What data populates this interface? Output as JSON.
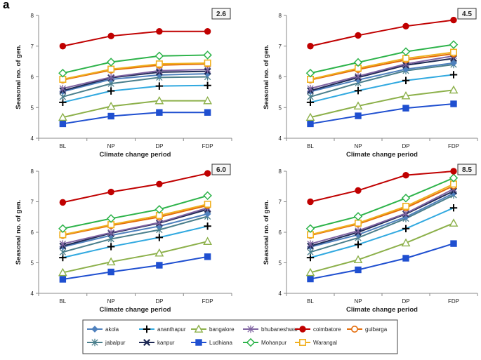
{
  "panel_label": "a",
  "colors": {
    "akola": "#4f81bd",
    "ananthapur": "#000000",
    "bangalore": "#8cb04a",
    "bhubaneshwar": "#8064a2",
    "coimbatore": "#c00000",
    "gulbarga": "#e46c0a",
    "jabalpur": "#4a7f8c",
    "kanpur": "#1f2a55",
    "Ludhiana": "#1f4fd0",
    "Mohanpur": "#2db34a",
    "Warangal": "#f0b020",
    "ananthapur_light": "#31a9e0"
  },
  "legend": {
    "entries": [
      "akola",
      "ananthapur",
      "bangalore",
      "bhubaneshwar",
      "coimbatore",
      "gulbarga",
      "jabalpur",
      "kanpur",
      "Ludhiana",
      "Mohanpur",
      "Warangal"
    ]
  },
  "chart_data": [
    {
      "type": "line",
      "scenario": "2.6",
      "categories": [
        "BL",
        "NP",
        "DP",
        "FDP"
      ],
      "xlabel": "Climate change period",
      "ylabel": "Seasonal no. of gen.",
      "ylim": [
        4,
        8
      ],
      "yticks": [
        4,
        5,
        6,
        7,
        8
      ],
      "series": [
        {
          "name": "coimbatore",
          "values": [
            7.0,
            7.33,
            7.48,
            7.48
          ]
        },
        {
          "name": "Mohanpur",
          "values": [
            6.12,
            6.48,
            6.68,
            6.71
          ]
        },
        {
          "name": "Warangal",
          "values": [
            5.92,
            6.25,
            6.42,
            6.45
          ]
        },
        {
          "name": "gulbarga",
          "values": [
            5.9,
            6.22,
            6.38,
            6.42
          ]
        },
        {
          "name": "bhubaneshwar",
          "values": [
            5.62,
            5.99,
            6.2,
            6.24
          ]
        },
        {
          "name": "kanpur",
          "values": [
            5.55,
            5.97,
            6.15,
            6.18
          ]
        },
        {
          "name": "akola",
          "values": [
            5.52,
            5.92,
            6.06,
            6.1
          ]
        },
        {
          "name": "jabalpur",
          "values": [
            5.35,
            5.78,
            5.98,
            6.0
          ]
        },
        {
          "name": "ananthapur",
          "values": [
            5.17,
            5.54,
            5.7,
            5.72
          ]
        },
        {
          "name": "bangalore",
          "values": [
            4.68,
            5.04,
            5.22,
            5.22
          ]
        },
        {
          "name": "Ludhiana",
          "values": [
            4.47,
            4.72,
            4.84,
            4.84
          ]
        }
      ]
    },
    {
      "type": "line",
      "scenario": "4.5",
      "categories": [
        "BL",
        "NP",
        "DP",
        "FDP"
      ],
      "xlabel": "Climate change period",
      "ylabel": "Seasonal no. of gen.",
      "ylim": [
        4,
        8
      ],
      "yticks": [
        4,
        5,
        6,
        7,
        8
      ],
      "series": [
        {
          "name": "coimbatore",
          "values": [
            7.0,
            7.35,
            7.65,
            7.85
          ]
        },
        {
          "name": "Mohanpur",
          "values": [
            6.12,
            6.47,
            6.82,
            7.05
          ]
        },
        {
          "name": "Warangal",
          "values": [
            5.92,
            6.28,
            6.6,
            6.8
          ]
        },
        {
          "name": "gulbarga",
          "values": [
            5.9,
            6.24,
            6.55,
            6.75
          ]
        },
        {
          "name": "bhubaneshwar",
          "values": [
            5.62,
            6.02,
            6.42,
            6.68
          ]
        },
        {
          "name": "kanpur",
          "values": [
            5.55,
            5.98,
            6.38,
            6.6
          ]
        },
        {
          "name": "akola",
          "values": [
            5.52,
            5.9,
            6.25,
            6.45
          ]
        },
        {
          "name": "jabalpur",
          "values": [
            5.35,
            5.8,
            6.2,
            6.4
          ]
        },
        {
          "name": "ananthapur",
          "values": [
            5.17,
            5.55,
            5.88,
            6.07
          ]
        },
        {
          "name": "bangalore",
          "values": [
            4.68,
            5.05,
            5.38,
            5.57
          ]
        },
        {
          "name": "Ludhiana",
          "values": [
            4.47,
            4.73,
            4.98,
            5.12
          ]
        }
      ]
    },
    {
      "type": "line",
      "scenario": "6.0",
      "categories": [
        "BL",
        "NP",
        "DP",
        "FDP"
      ],
      "xlabel": "Climate change period",
      "ylabel": "Seasonal no. of gen.",
      "ylim": [
        4,
        8
      ],
      "yticks": [
        4,
        5,
        6,
        7,
        8
      ],
      "series": [
        {
          "name": "coimbatore",
          "values": [
            6.98,
            7.32,
            7.58,
            7.93
          ]
        },
        {
          "name": "Mohanpur",
          "values": [
            6.12,
            6.45,
            6.75,
            7.2
          ]
        },
        {
          "name": "Warangal",
          "values": [
            5.92,
            6.25,
            6.55,
            6.92
          ]
        },
        {
          "name": "gulbarga",
          "values": [
            5.9,
            6.22,
            6.5,
            6.88
          ]
        },
        {
          "name": "bhubaneshwar",
          "values": [
            5.62,
            5.99,
            6.32,
            6.8
          ]
        },
        {
          "name": "kanpur",
          "values": [
            5.55,
            5.97,
            6.3,
            6.75
          ]
        },
        {
          "name": "akola",
          "values": [
            5.52,
            5.9,
            6.2,
            6.6
          ]
        },
        {
          "name": "jabalpur",
          "values": [
            5.35,
            5.78,
            6.08,
            6.52
          ]
        },
        {
          "name": "ananthapur",
          "values": [
            5.17,
            5.53,
            5.83,
            6.2
          ]
        },
        {
          "name": "bangalore",
          "values": [
            4.68,
            5.03,
            5.32,
            5.7
          ]
        },
        {
          "name": "Ludhiana",
          "values": [
            4.46,
            4.7,
            4.92,
            5.2
          ]
        }
      ]
    },
    {
      "type": "line",
      "scenario": "8.5",
      "categories": [
        "BL",
        "NP",
        "DP",
        "FDP"
      ],
      "xlabel": "Climate change period",
      "ylabel": "Seasonal no. of gen.",
      "ylim": [
        4,
        8
      ],
      "yticks": [
        4,
        5,
        6,
        7,
        8
      ],
      "series": [
        {
          "name": "coimbatore",
          "values": [
            7.0,
            7.37,
            7.87,
            8.0
          ]
        },
        {
          "name": "Mohanpur",
          "values": [
            6.12,
            6.52,
            7.12,
            7.78
          ]
        },
        {
          "name": "Warangal",
          "values": [
            5.92,
            6.3,
            6.85,
            7.58
          ]
        },
        {
          "name": "gulbarga",
          "values": [
            5.9,
            6.27,
            6.8,
            7.52
          ]
        },
        {
          "name": "bhubaneshwar",
          "values": [
            5.62,
            6.05,
            6.62,
            7.42
          ]
        },
        {
          "name": "kanpur",
          "values": [
            5.55,
            6.0,
            6.6,
            7.35
          ]
        },
        {
          "name": "akola",
          "values": [
            5.52,
            5.92,
            6.5,
            7.28
          ]
        },
        {
          "name": "jabalpur",
          "values": [
            5.35,
            5.82,
            6.45,
            7.22
          ]
        },
        {
          "name": "ananthapur",
          "values": [
            5.17,
            5.6,
            6.12,
            6.8
          ]
        },
        {
          "name": "bangalore",
          "values": [
            4.68,
            5.1,
            5.65,
            6.3
          ]
        },
        {
          "name": "Ludhiana",
          "values": [
            4.47,
            4.77,
            5.15,
            5.63
          ]
        }
      ]
    }
  ]
}
